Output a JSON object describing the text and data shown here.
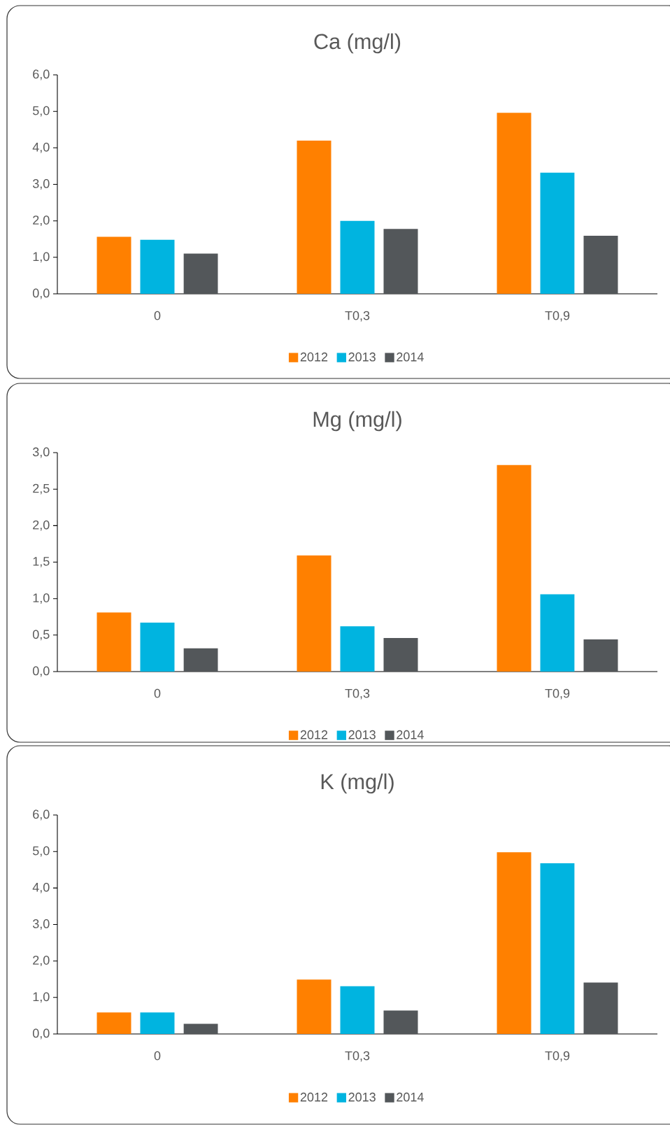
{
  "chart_data": [
    {
      "type": "bar",
      "title": "Ca (mg/l)",
      "categories": [
        "0",
        "T0,3",
        "T0,9"
      ],
      "series": [
        {
          "name": "2012",
          "color": "#ff8000",
          "values": [
            1.56,
            4.2,
            4.96
          ]
        },
        {
          "name": "2013",
          "color": "#00b4e0",
          "values": [
            1.48,
            2.0,
            3.32
          ]
        },
        {
          "name": "2014",
          "color": "#53575a",
          "values": [
            1.1,
            1.78,
            1.59
          ]
        }
      ],
      "ylim": [
        0,
        6
      ],
      "yticks": [
        {
          "value": 0,
          "label": "0,0"
        },
        {
          "value": 1,
          "label": "1,0"
        },
        {
          "value": 2,
          "label": "2,0"
        },
        {
          "value": 3,
          "label": "3,0"
        },
        {
          "value": 4,
          "label": "4,0"
        },
        {
          "value": 5,
          "label": "5,0"
        },
        {
          "value": 6,
          "label": "6,0"
        }
      ],
      "grid": false,
      "legend": "bottom"
    },
    {
      "type": "bar",
      "title": "Mg (mg/l)",
      "categories": [
        "0",
        "T0,3",
        "T0,9"
      ],
      "series": [
        {
          "name": "2012",
          "color": "#ff8000",
          "values": [
            0.81,
            1.59,
            2.83
          ]
        },
        {
          "name": "2013",
          "color": "#00b4e0",
          "values": [
            0.67,
            0.62,
            1.06
          ]
        },
        {
          "name": "2014",
          "color": "#53575a",
          "values": [
            0.32,
            0.46,
            0.44
          ]
        }
      ],
      "ylim": [
        0,
        3
      ],
      "yticks": [
        {
          "value": 0,
          "label": "0,0"
        },
        {
          "value": 0.5,
          "label": "0,5"
        },
        {
          "value": 1,
          "label": "1,0"
        },
        {
          "value": 1.5,
          "label": "1,5"
        },
        {
          "value": 2,
          "label": "2,0"
        },
        {
          "value": 2.5,
          "label": "2,5"
        },
        {
          "value": 3,
          "label": "3,0"
        }
      ],
      "grid": false,
      "legend": "bottom"
    },
    {
      "type": "bar",
      "title": "K (mg/l)",
      "categories": [
        "0",
        "T0,3",
        "T0,9"
      ],
      "series": [
        {
          "name": "2012",
          "color": "#ff8000",
          "values": [
            0.59,
            1.49,
            4.98
          ]
        },
        {
          "name": "2013",
          "color": "#00b4e0",
          "values": [
            0.59,
            1.31,
            4.68
          ]
        },
        {
          "name": "2014",
          "color": "#53575a",
          "values": [
            0.28,
            0.64,
            1.41
          ]
        }
      ],
      "ylim": [
        0,
        6
      ],
      "yticks": [
        {
          "value": 0,
          "label": "0,0"
        },
        {
          "value": 1,
          "label": "1,0"
        },
        {
          "value": 2,
          "label": "2,0"
        },
        {
          "value": 3,
          "label": "3,0"
        },
        {
          "value": 4,
          "label": "4,0"
        },
        {
          "value": 5,
          "label": "5,0"
        },
        {
          "value": 6,
          "label": "6,0"
        }
      ],
      "grid": false,
      "legend": "bottom"
    }
  ]
}
